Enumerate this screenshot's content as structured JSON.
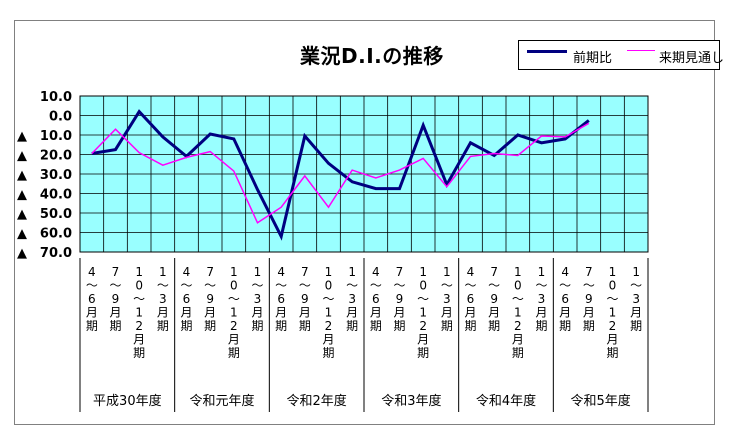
{
  "chart_data": {
    "type": "line",
    "title": "業況D.I.の推移",
    "ylim": [
      -70,
      10
    ],
    "yticks": [
      {
        "value": 10,
        "label": "10.0"
      },
      {
        "value": 0,
        "label": "0.0"
      },
      {
        "value": -10,
        "label": "▲ 10.0"
      },
      {
        "value": -20,
        "label": "▲ 20.0"
      },
      {
        "value": -30,
        "label": "▲ 30.0"
      },
      {
        "value": -40,
        "label": "▲ 40.0"
      },
      {
        "value": -50,
        "label": "▲ 50.0"
      },
      {
        "value": -60,
        "label": "▲ 60.0"
      },
      {
        "value": -70,
        "label": "▲ 70.0"
      }
    ],
    "categories": [
      "4～6月期",
      "7～9月期",
      "10～12月期",
      "1～3月期",
      "4～6月期",
      "7～9月期",
      "10～12月期",
      "1～3月期",
      "4～6月期",
      "7～9月期",
      "10～12月期",
      "1～3月期",
      "4～6月期",
      "7～9月期",
      "10～12月期",
      "1～3月期",
      "4～6月期",
      "7～9月期",
      "10～12月期",
      "1～3月期",
      "4～6月期",
      "7～9月期",
      "10～12月期",
      "1～3月期"
    ],
    "category_labels_vertical": [
      "4\n～\n6\n月\n期",
      "7\n～\n9\n月\n期",
      "1\n0\n～\n1\n2\n月\n期",
      "1\n～\n3\n月\n期",
      "4\n～\n6\n月\n期",
      "7\n～\n9\n月\n期",
      "1\n0\n～\n1\n2\n月\n期",
      "1\n～\n3\n月\n期",
      "4\n～\n6\n月\n期",
      "7\n～\n9\n月\n期",
      "1\n0\n～\n1\n2\n月\n期",
      "1\n～\n3\n月\n期",
      "4\n～\n6\n月\n期",
      "7\n～\n9\n月\n期",
      "1\n0\n～\n1\n2\n月\n期",
      "1\n～\n3\n月\n期",
      "4\n～\n6\n月\n期",
      "7\n～\n9\n月\n期",
      "1\n0\n～\n1\n2\n月\n期",
      "1\n～\n3\n月\n期",
      "4\n～\n6\n月\n期",
      "7\n～\n9\n月\n期",
      "1\n0\n～\n1\n2\n月\n期",
      "1\n～\n3\n月\n期"
    ],
    "groups": [
      "平成30年度",
      "令和元年度",
      "令和2年度",
      "令和3年度",
      "令和4年度",
      "令和5年度"
    ],
    "series": [
      {
        "name": "前期比",
        "color": "#000080",
        "values": [
          -19.5,
          -17.5,
          2,
          -11,
          -21,
          -9.5,
          -12,
          -38,
          -62,
          -10.5,
          -24.5,
          -34,
          -37.5,
          -37.5,
          -5,
          -35.5,
          -14,
          -20.5,
          -10,
          -14,
          -12,
          -2.5,
          null,
          null
        ]
      },
      {
        "name": "来期見通し",
        "color": "#ff00ff",
        "values": [
          -19.5,
          -7,
          -19,
          -25.5,
          -21.5,
          -18.5,
          -28.5,
          -55,
          -47,
          -31,
          -47,
          -28,
          -32,
          -28,
          -22,
          -36.5,
          -21,
          -19.5,
          -20.5,
          -10.5,
          -11,
          -4,
          null,
          null
        ]
      }
    ],
    "grid": true,
    "plot_background": "#99ffff",
    "legend_position": "top-right"
  }
}
